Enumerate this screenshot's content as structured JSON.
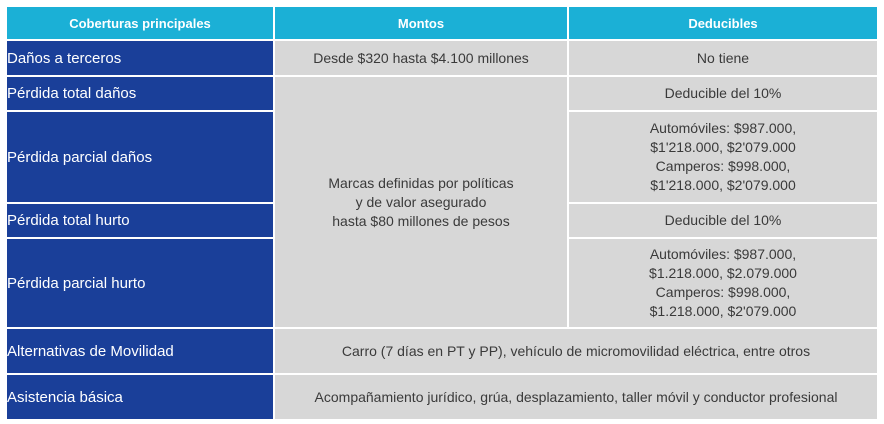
{
  "headers": {
    "coverage": "Coberturas principales",
    "amounts": "Montos",
    "deductibles": "Deducibles"
  },
  "rows": [
    {
      "coverage": "Daños a terceros",
      "amount": "Desde $320 hasta $4.100 millones",
      "deductible": "No tiene"
    },
    {
      "coverage": "Pérdida total daños",
      "deductible": "Deducible del 10%"
    },
    {
      "coverage": "Pérdida parcial daños",
      "deductible_lines": [
        "Automóviles: $987.000,",
        "$1'218.000, $2'079.000",
        "Camperos: $998.000,",
        "$1'218.000, $2'079.000"
      ]
    },
    {
      "coverage": "Pérdida total hurto",
      "deductible": "Deducible del 10%"
    },
    {
      "coverage": "Pérdida parcial hurto",
      "deductible_lines": [
        "Automóviles: $987.000,",
        "$1.218.000, $2.079.000",
        "Camperos: $998.000,",
        "$1.218.000, $2'079.000"
      ]
    },
    {
      "coverage": "Alternativas de Movilidad",
      "merged": "Carro (7 días en PT y PP), vehículo de micromovilidad eléctrica, entre otros"
    },
    {
      "coverage": "Asistencia básica",
      "merged": "Acompañamiento jurídico, grúa, desplazamiento, taller móvil y conductor profesional"
    }
  ],
  "shared_amount_lines": [
    "Marcas definidas por políticas",
    "y de valor asegurado",
    "hasta $80 millones de pesos"
  ],
  "colors": {
    "header_bg": "#1bb0d6",
    "label_bg": "#1a3f99",
    "value_bg": "#d7d7d7"
  }
}
